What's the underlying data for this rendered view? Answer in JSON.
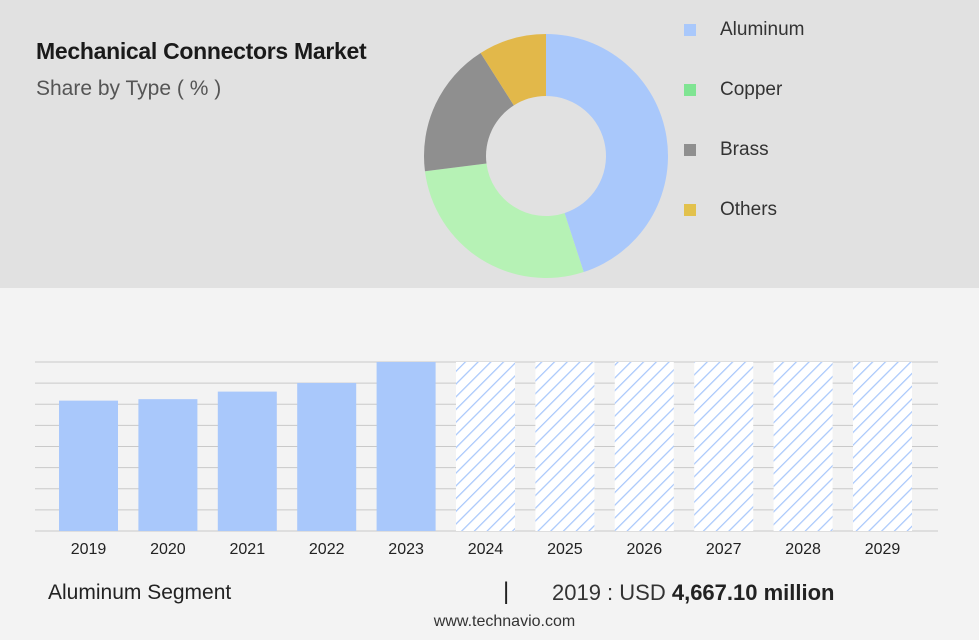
{
  "header": {
    "title": "Mechanical Connectors Market",
    "subtitle": "Share by Type ( % )"
  },
  "legend": [
    {
      "label": "Aluminum",
      "color": "#a9c8fb"
    },
    {
      "label": "Copper",
      "color": "#7fe492"
    },
    {
      "label": "Brass",
      "color": "#8f8f8f"
    },
    {
      "label": "Others",
      "color": "#e2c14c"
    }
  ],
  "chart_data": [
    {
      "type": "pie",
      "categories": [
        "Aluminum",
        "Copper",
        "Brass",
        "Others"
      ],
      "values": [
        45,
        28,
        18,
        9
      ],
      "colors": [
        "#a9c8fb",
        "#b6f2b5",
        "#8f8f8f",
        "#e2b84a"
      ],
      "donut": true
    },
    {
      "type": "bar",
      "categories": [
        "2019",
        "2020",
        "2021",
        "2022",
        "2023",
        "2024",
        "2025",
        "2026",
        "2027",
        "2028",
        "2029"
      ],
      "values": [
        4667.1,
        4720,
        4990,
        5300,
        6050,
        null,
        null,
        null,
        null,
        null,
        null
      ],
      "forecast_categories": [
        "2024",
        "2025",
        "2026",
        "2027",
        "2028",
        "2029"
      ],
      "forecast_level": 6050,
      "ylim": [
        0,
        6050
      ],
      "grid": true,
      "bar_color": "#a9c8fb",
      "forecast_style": "hatched"
    }
  ],
  "segment": {
    "label": "Aluminum Segment",
    "separator": "|",
    "year_text": "2019 : USD ",
    "value_text": "4,667.10 million"
  },
  "footer": {
    "site": "www.technavio.com"
  }
}
